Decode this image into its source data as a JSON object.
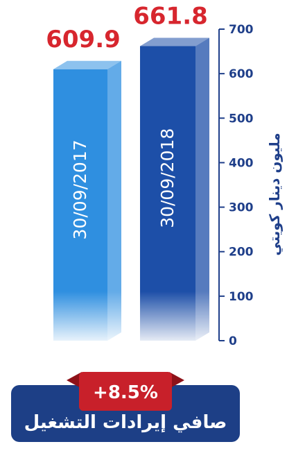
{
  "chart_data": {
    "type": "bar",
    "categories": [
      "30/09/2017",
      "30/09/2018"
    ],
    "values": [
      609.9,
      661.8
    ],
    "value_labels": [
      "609.9",
      "661.8"
    ],
    "ylabel": "مليون دينار كويتي",
    "ylim": [
      0,
      700
    ],
    "yticks": [
      "0",
      "100",
      "200",
      "300",
      "400",
      "500",
      "600",
      "700"
    ],
    "axis_position": "right",
    "grid": false
  },
  "change_badge": {
    "label": "+8.5%"
  },
  "caption": {
    "text": "صافي إيرادات التشغيل"
  },
  "colors": {
    "bar_2017": "#2f8fe0",
    "bar_2018": "#1d4fa8",
    "value_label": "#d7262e",
    "axis": "#1f3f8a",
    "badge": "#c8202a",
    "caption_box": "#1d3f86"
  }
}
